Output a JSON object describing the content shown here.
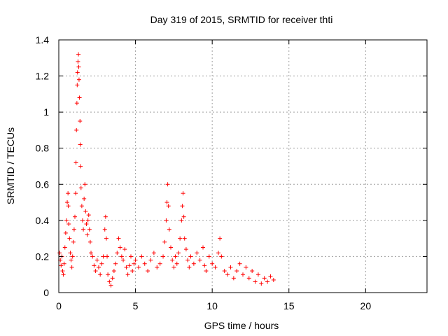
{
  "chart_data": {
    "type": "scatter",
    "title": "Day 319 of 2015, SRMTID for receiver thti",
    "xlabel": "GPS time / hours",
    "ylabel": "SRMTID / TECUs",
    "xlim": [
      0,
      24
    ],
    "ylim": [
      0,
      1.4
    ],
    "xticks": [
      0,
      5,
      10,
      15,
      20
    ],
    "yticks": [
      0,
      0.2,
      0.4,
      0.6,
      0.8,
      1,
      1.2,
      1.4
    ],
    "ytick_labels": [
      "0",
      "0.2",
      "0.4",
      "0.6",
      "0.8",
      "1",
      "1.2",
      "1.4"
    ],
    "grid": true,
    "marker": "plus",
    "color": "#ff0000",
    "series": [
      {
        "name": "SRMTID",
        "points": [
          [
            0.05,
            0.22
          ],
          [
            0.1,
            0.18
          ],
          [
            0.15,
            0.15
          ],
          [
            0.2,
            0.2
          ],
          [
            0.25,
            0.12
          ],
          [
            0.3,
            0.1
          ],
          [
            0.35,
            0.16
          ],
          [
            0.4,
            0.25
          ],
          [
            0.45,
            0.33
          ],
          [
            0.5,
            0.4
          ],
          [
            0.55,
            0.5
          ],
          [
            0.6,
            0.55
          ],
          [
            0.62,
            0.48
          ],
          [
            0.65,
            0.38
          ],
          [
            0.7,
            0.3
          ],
          [
            0.75,
            0.22
          ],
          [
            0.8,
            0.18
          ],
          [
            0.85,
            0.14
          ],
          [
            0.9,
            0.2
          ],
          [
            0.95,
            0.28
          ],
          [
            1.0,
            0.35
          ],
          [
            1.05,
            0.42
          ],
          [
            1.1,
            0.55
          ],
          [
            1.12,
            0.72
          ],
          [
            1.15,
            0.9
          ],
          [
            1.18,
            1.05
          ],
          [
            1.2,
            1.15
          ],
          [
            1.22,
            1.22
          ],
          [
            1.25,
            1.28
          ],
          [
            1.28,
            1.32
          ],
          [
            1.3,
            1.25
          ],
          [
            1.32,
            1.18
          ],
          [
            1.35,
            1.08
          ],
          [
            1.38,
            0.95
          ],
          [
            1.4,
            0.82
          ],
          [
            1.42,
            0.7
          ],
          [
            1.45,
            0.58
          ],
          [
            1.5,
            0.48
          ],
          [
            1.55,
            0.4
          ],
          [
            1.6,
            0.35
          ],
          [
            1.65,
            0.52
          ],
          [
            1.7,
            0.6
          ],
          [
            1.75,
            0.45
          ],
          [
            1.8,
            0.38
          ],
          [
            1.85,
            0.32
          ],
          [
            1.9,
            0.4
          ],
          [
            1.95,
            0.43
          ],
          [
            2.0,
            0.35
          ],
          [
            2.05,
            0.28
          ],
          [
            2.1,
            0.22
          ],
          [
            2.2,
            0.2
          ],
          [
            2.3,
            0.15
          ],
          [
            2.4,
            0.12
          ],
          [
            2.5,
            0.18
          ],
          [
            2.6,
            0.14
          ],
          [
            2.7,
            0.1
          ],
          [
            2.8,
            0.16
          ],
          [
            2.9,
            0.2
          ],
          [
            3.0,
            0.35
          ],
          [
            3.05,
            0.42
          ],
          [
            3.1,
            0.3
          ],
          [
            3.15,
            0.2
          ],
          [
            3.2,
            0.1
          ],
          [
            3.3,
            0.06
          ],
          [
            3.4,
            0.04
          ],
          [
            3.5,
            0.08
          ],
          [
            3.6,
            0.12
          ],
          [
            3.7,
            0.16
          ],
          [
            3.8,
            0.22
          ],
          [
            3.9,
            0.3
          ],
          [
            4.0,
            0.25
          ],
          [
            4.1,
            0.2
          ],
          [
            4.2,
            0.18
          ],
          [
            4.3,
            0.24
          ],
          [
            4.4,
            0.14
          ],
          [
            4.5,
            0.1
          ],
          [
            4.6,
            0.15
          ],
          [
            4.7,
            0.2
          ],
          [
            4.8,
            0.12
          ],
          [
            4.9,
            0.16
          ],
          [
            5.0,
            0.18
          ],
          [
            5.2,
            0.14
          ],
          [
            5.4,
            0.2
          ],
          [
            5.6,
            0.16
          ],
          [
            5.8,
            0.12
          ],
          [
            6.0,
            0.18
          ],
          [
            6.2,
            0.22
          ],
          [
            6.4,
            0.14
          ],
          [
            6.6,
            0.16
          ],
          [
            6.8,
            0.2
          ],
          [
            6.9,
            0.28
          ],
          [
            7.0,
            0.4
          ],
          [
            7.05,
            0.5
          ],
          [
            7.1,
            0.6
          ],
          [
            7.15,
            0.48
          ],
          [
            7.2,
            0.35
          ],
          [
            7.3,
            0.25
          ],
          [
            7.4,
            0.18
          ],
          [
            7.5,
            0.14
          ],
          [
            7.6,
            0.2
          ],
          [
            7.7,
            0.16
          ],
          [
            7.8,
            0.22
          ],
          [
            7.9,
            0.3
          ],
          [
            8.0,
            0.4
          ],
          [
            8.05,
            0.48
          ],
          [
            8.1,
            0.55
          ],
          [
            8.15,
            0.42
          ],
          [
            8.2,
            0.3
          ],
          [
            8.3,
            0.24
          ],
          [
            8.4,
            0.18
          ],
          [
            8.5,
            0.14
          ],
          [
            8.6,
            0.2
          ],
          [
            8.8,
            0.16
          ],
          [
            9.0,
            0.22
          ],
          [
            9.2,
            0.18
          ],
          [
            9.4,
            0.25
          ],
          [
            9.5,
            0.15
          ],
          [
            9.6,
            0.12
          ],
          [
            9.8,
            0.2
          ],
          [
            10.0,
            0.16
          ],
          [
            10.2,
            0.14
          ],
          [
            10.4,
            0.22
          ],
          [
            10.5,
            0.3
          ],
          [
            10.6,
            0.2
          ],
          [
            10.8,
            0.12
          ],
          [
            11.0,
            0.1
          ],
          [
            11.2,
            0.14
          ],
          [
            11.4,
            0.08
          ],
          [
            11.6,
            0.12
          ],
          [
            11.8,
            0.16
          ],
          [
            12.0,
            0.1
          ],
          [
            12.2,
            0.14
          ],
          [
            12.4,
            0.08
          ],
          [
            12.6,
            0.12
          ],
          [
            12.8,
            0.06
          ],
          [
            13.0,
            0.1
          ],
          [
            13.2,
            0.05
          ],
          [
            13.4,
            0.08
          ],
          [
            13.6,
            0.06
          ],
          [
            13.8,
            0.09
          ],
          [
            14.0,
            0.07
          ]
        ]
      }
    ]
  }
}
